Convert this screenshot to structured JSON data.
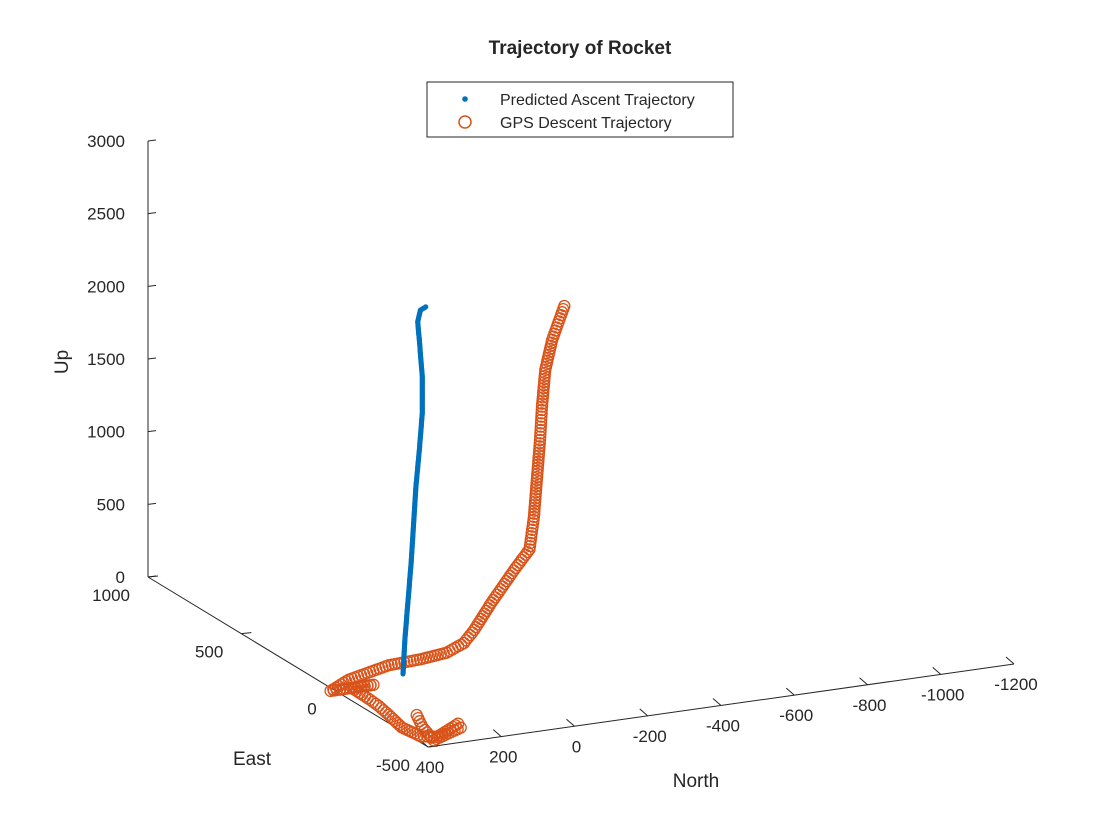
{
  "chart_data": {
    "type": "scatter",
    "projection": "3d",
    "title": "Trajectory of Rocket",
    "xlabel": "East",
    "ylabel": "North",
    "zlabel": "Up",
    "xlim": [
      -500,
      1000
    ],
    "ylim": [
      -1200,
      400
    ],
    "zlim": [
      0,
      3000
    ],
    "x_ticks": [
      "-500",
      "0",
      "500",
      "1000"
    ],
    "y_ticks": [
      "400",
      "200",
      "0",
      "-200",
      "-400",
      "-600",
      "-800",
      "-1000",
      "-1200"
    ],
    "z_ticks": [
      "0",
      "500",
      "1000",
      "1500",
      "2000",
      "2500",
      "3000"
    ],
    "grid": false,
    "legend_position": "top-center",
    "series": [
      {
        "name": "Predicted Ascent Trajectory",
        "marker": "point",
        "color": "#0072BD",
        "points": [
          {
            "east": 38,
            "north": 194,
            "up": 10
          },
          {
            "east": 45,
            "north": 185,
            "up": 250
          },
          {
            "east": 52,
            "north": 173,
            "up": 500
          },
          {
            "east": 59,
            "north": 161,
            "up": 750
          },
          {
            "east": 66,
            "north": 151,
            "up": 1000
          },
          {
            "east": 73,
            "north": 141,
            "up": 1250
          },
          {
            "east": 76,
            "north": 130,
            "up": 1500
          },
          {
            "east": 76,
            "north": 122,
            "up": 1750
          },
          {
            "east": 76,
            "north": 122,
            "up": 2000
          },
          {
            "east": 76,
            "north": 130,
            "up": 2250
          },
          {
            "east": 79,
            "north": 133,
            "up": 2380
          },
          {
            "east": 86,
            "north": 122,
            "up": 2450
          },
          {
            "east": 93,
            "north": 104,
            "up": 2460
          }
        ]
      },
      {
        "name": "GPS Descent Trajectory",
        "marker": "circle",
        "color": "#D95319",
        "points": [
          {
            "east": -10,
            "north": -222,
            "up": 2430
          },
          {
            "east": 0,
            "north": -194,
            "up": 2200
          },
          {
            "east": 0,
            "north": -175,
            "up": 2000
          },
          {
            "east": 0,
            "north": -166,
            "up": 1750
          },
          {
            "east": 0,
            "north": -160,
            "up": 1500
          },
          {
            "east": 0,
            "north": -152,
            "up": 1250
          },
          {
            "east": 0,
            "north": -144,
            "up": 1000
          },
          {
            "east": 0,
            "north": -132,
            "up": 780
          },
          {
            "east": 0,
            "north": -89,
            "up": 650
          },
          {
            "east": 0,
            "north": -28,
            "up": 450
          },
          {
            "east": 0,
            "north": 19,
            "up": 280
          },
          {
            "east": 0,
            "north": 47,
            "up": 200
          },
          {
            "east": 0,
            "north": 94,
            "up": 150
          },
          {
            "east": 0,
            "north": 167,
            "up": 130
          },
          {
            "east": 0,
            "north": 253,
            "up": 120
          },
          {
            "east": 0,
            "north": 361,
            "up": 60
          },
          {
            "east": 0,
            "north": 411,
            "up": 0
          },
          {
            "east": 0,
            "north": 326,
            "up": 0
          },
          {
            "east": 0,
            "north": 294,
            "up": 0
          },
          {
            "east": 0,
            "north": 353,
            "up": 0
          },
          {
            "east": 0,
            "north": 303,
            "up": -100
          },
          {
            "east": 0,
            "north": 280,
            "up": -150
          },
          {
            "east": 0,
            "north": 253,
            "up": -220
          },
          {
            "east": 0,
            "north": 217,
            "up": -320
          },
          {
            "east": 0,
            "north": 165,
            "up": -400
          },
          {
            "east": 0,
            "north": 120,
            "up": -420
          },
          {
            "east": 0,
            "north": 63,
            "up": -350
          },
          {
            "east": 0,
            "north": 56,
            "up": -380
          },
          {
            "east": 0,
            "north": 130,
            "up": -440
          },
          {
            "east": 0,
            "north": 160,
            "up": -340
          },
          {
            "east": 0,
            "north": 176,
            "up": -250
          }
        ]
      }
    ]
  }
}
